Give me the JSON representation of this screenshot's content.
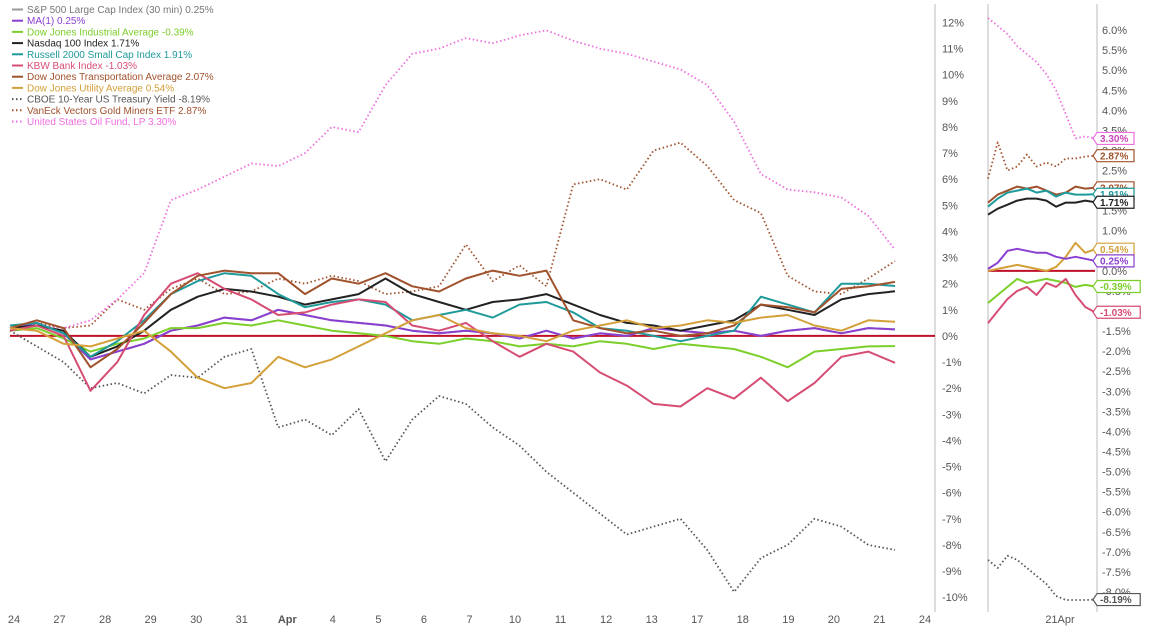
{
  "chart_data": [
    {
      "type": "line",
      "title": "",
      "xlabel": "",
      "ylabel": "",
      "x_ticks": [
        "24",
        "27",
        "28",
        "29",
        "30",
        "31",
        "Apr",
        "4",
        "5",
        "6",
        "7",
        "10",
        "11",
        "12",
        "13",
        "17",
        "18",
        "19",
        "20",
        "21",
        "24"
      ],
      "ylim": [
        -10.3,
        12.4
      ],
      "y_ticks": [
        "12%",
        "11%",
        "10%",
        "9%",
        "8%",
        "7%",
        "6%",
        "5%",
        "4%",
        "3%",
        "2%",
        "1%",
        "0%",
        "-1%",
        "-2%",
        "-3%",
        "-4%",
        "-5%",
        "-6%",
        "-7%",
        "-8%",
        "-9%",
        "-10%"
      ],
      "legend_position": "top-left",
      "zero_line_color": "#c0102a",
      "series": [
        {
          "name": "S&P 500 Large Cap Index (30 min) 0.25%",
          "color": "#999999",
          "style": "solid",
          "values": [
            0.3,
            0.5,
            0.1,
            -0.9,
            -0.6,
            -0.3,
            0.2,
            0.4,
            0.7,
            0.6,
            1.0,
            0.8,
            0.6,
            0.5,
            0.4,
            0.2,
            0.1,
            0.2,
            0.1,
            -0.1,
            0.2,
            -0.1,
            0.1,
            0.0,
            0.3,
            0.2,
            0.1,
            0.2,
            0.0,
            0.2,
            0.3,
            0.1,
            0.3,
            0.25
          ]
        },
        {
          "name": "MA(1) 0.25%",
          "color": "#8a3fd1",
          "style": "solid",
          "values": [
            0.3,
            0.5,
            0.1,
            -0.9,
            -0.6,
            -0.3,
            0.2,
            0.4,
            0.7,
            0.6,
            1.0,
            0.8,
            0.6,
            0.5,
            0.4,
            0.2,
            0.1,
            0.2,
            0.1,
            -0.1,
            0.2,
            -0.1,
            0.1,
            0.0,
            0.3,
            0.2,
            0.1,
            0.2,
            0.0,
            0.2,
            0.3,
            0.1,
            0.3,
            0.25
          ]
        },
        {
          "name": "Dow Jones Industrial Average -0.39%",
          "color": "#7ccf2a",
          "style": "solid",
          "values": [
            0.2,
            0.3,
            -0.1,
            -0.6,
            -0.3,
            -0.1,
            0.3,
            0.3,
            0.5,
            0.4,
            0.6,
            0.4,
            0.2,
            0.1,
            0.0,
            -0.2,
            -0.3,
            -0.1,
            -0.2,
            -0.4,
            -0.3,
            -0.4,
            -0.2,
            -0.3,
            -0.5,
            -0.3,
            -0.4,
            -0.5,
            -0.8,
            -1.2,
            -0.6,
            -0.5,
            -0.4,
            -0.39
          ]
        },
        {
          "name": "Nasdaq 100 Index 1.71%",
          "color": "#222222",
          "style": "solid",
          "values": [
            0.3,
            0.4,
            0.2,
            -0.8,
            -0.4,
            0.2,
            1.0,
            1.5,
            1.8,
            1.7,
            1.5,
            1.2,
            1.4,
            1.6,
            2.2,
            1.6,
            1.3,
            1.0,
            1.3,
            1.4,
            1.6,
            1.2,
            0.8,
            0.5,
            0.4,
            0.2,
            0.4,
            0.6,
            1.2,
            1.0,
            0.8,
            1.4,
            1.6,
            1.71
          ]
        },
        {
          "name": "Russell 2000 Small Cap Index 1.91%",
          "color": "#1f9a9a",
          "style": "solid",
          "values": [
            0.4,
            0.5,
            0.1,
            -0.8,
            -0.2,
            0.6,
            1.6,
            2.1,
            2.4,
            2.3,
            1.6,
            1.1,
            1.3,
            1.4,
            1.2,
            0.6,
            0.8,
            1.0,
            0.7,
            1.2,
            1.3,
            0.9,
            0.3,
            0.2,
            0.0,
            -0.2,
            0.0,
            0.2,
            1.5,
            1.2,
            0.9,
            2.0,
            2.0,
            1.91
          ]
        },
        {
          "name": "KBW Bank Index -1.03%",
          "color": "#d64d74",
          "style": "solid",
          "values": [
            0.2,
            0.4,
            0.0,
            -2.1,
            -1.0,
            0.8,
            2.0,
            2.4,
            1.8,
            1.4,
            0.8,
            0.9,
            1.2,
            1.4,
            1.3,
            0.4,
            0.2,
            0.5,
            -0.2,
            -0.8,
            -0.3,
            -0.6,
            -1.4,
            -1.9,
            -2.6,
            -2.7,
            -2.0,
            -2.4,
            -1.6,
            -2.5,
            -1.8,
            -0.8,
            -0.6,
            -1.03
          ]
        },
        {
          "name": "Dow Jones Transportation Average 2.07%",
          "color": "#a0522d",
          "style": "solid",
          "values": [
            0.3,
            0.6,
            0.3,
            -1.2,
            -0.5,
            0.5,
            1.6,
            2.3,
            2.5,
            2.4,
            2.4,
            1.6,
            2.2,
            2.0,
            2.4,
            1.9,
            1.7,
            2.2,
            2.5,
            2.3,
            2.5,
            0.6,
            0.3,
            0.1,
            0.2,
            0.0,
            0.1,
            0.4,
            1.2,
            1.1,
            0.9,
            1.8,
            1.9,
            2.07
          ]
        },
        {
          "name": "Dow Jones Utility Average 0.54%",
          "color": "#d4a03a",
          "style": "solid",
          "values": [
            0.3,
            0.2,
            -0.3,
            -0.4,
            -0.1,
            0.2,
            -0.6,
            -1.6,
            -2.0,
            -1.8,
            -0.8,
            -1.2,
            -0.9,
            -0.4,
            0.1,
            0.6,
            0.8,
            0.3,
            0.1,
            0.0,
            -0.2,
            0.2,
            0.4,
            0.6,
            0.3,
            0.4,
            0.6,
            0.5,
            0.7,
            0.8,
            0.4,
            0.2,
            0.6,
            0.54
          ]
        },
        {
          "name": "CBOE 10-Year US Treasury Yield -8.19%",
          "color": "#555555",
          "style": "dotted",
          "values": [
            0.2,
            -0.4,
            -1.0,
            -2.0,
            -1.8,
            -2.2,
            -1.5,
            -1.6,
            -0.8,
            -0.5,
            -3.5,
            -3.2,
            -3.8,
            -2.8,
            -4.8,
            -3.2,
            -2.3,
            -2.6,
            -3.5,
            -4.2,
            -5.2,
            -6.0,
            -6.8,
            -7.6,
            -7.3,
            -7.0,
            -8.2,
            -9.8,
            -8.5,
            -8.0,
            -7.0,
            -7.3,
            -8.0,
            -8.19
          ]
        },
        {
          "name": "VanEck Vectors Gold Miners ETF 2.87%",
          "color": "#a0522d",
          "style": "dotted",
          "values": [
            0.2,
            0.5,
            0.3,
            0.4,
            1.4,
            1.0,
            1.8,
            2.2,
            1.6,
            1.7,
            2.2,
            2.0,
            2.3,
            2.1,
            1.6,
            1.7,
            1.9,
            3.5,
            2.1,
            2.7,
            1.9,
            5.8,
            6.0,
            5.6,
            7.1,
            7.4,
            6.5,
            5.2,
            4.7,
            2.3,
            1.7,
            1.6,
            2.2,
            2.87
          ]
        },
        {
          "name": "United States Oil Fund, LP 3.30%",
          "color": "#ee6ee0",
          "style": "dotted",
          "values": [
            0.2,
            0.4,
            0.3,
            0.6,
            1.4,
            2.4,
            5.2,
            5.6,
            6.1,
            6.6,
            6.5,
            7.0,
            8.0,
            7.8,
            9.6,
            10.8,
            11.0,
            11.4,
            11.2,
            11.5,
            11.7,
            11.3,
            11.0,
            10.8,
            10.5,
            10.2,
            9.6,
            8.2,
            6.2,
            5.6,
            5.5,
            5.3,
            4.6,
            3.3
          ]
        }
      ]
    },
    {
      "type": "line",
      "title": "",
      "xlabel": "",
      "ylabel": "",
      "x_ticks": [
        "21Apr"
      ],
      "ylim": [
        -8.3,
        6.45
      ],
      "y_ticks": [
        "6.0%",
        "5.5%",
        "5.0%",
        "4.5%",
        "4.0%",
        "3.5%",
        "3.0%",
        "2.5%",
        "2.0%",
        "1.5%",
        "1.0%",
        "0.5%",
        "0.0%",
        "-0.5%",
        "-1.0%",
        "-1.5%",
        "-2.0%",
        "-2.5%",
        "-3.0%",
        "-3.5%",
        "-4.0%",
        "-4.5%",
        "-5.0%",
        "-5.5%",
        "-6.0%",
        "-6.5%",
        "-7.0%",
        "-7.5%",
        "-8.0%"
      ],
      "zero_line_color": "#c0102a",
      "series": [
        {
          "name": "United States Oil Fund, LP",
          "color": "#ee6ee0",
          "style": "dotted",
          "end_label": "3.30%",
          "values": [
            6.3,
            6.1,
            5.9,
            5.6,
            5.4,
            5.2,
            4.9,
            4.5,
            3.9,
            3.3,
            3.35,
            3.3
          ]
        },
        {
          "name": "VanEck Vectors Gold Miners ETF",
          "color": "#a0522d",
          "style": "dotted",
          "end_label": "2.87%",
          "values": [
            2.3,
            3.2,
            2.5,
            2.6,
            2.9,
            2.6,
            2.7,
            2.6,
            2.8,
            2.8,
            2.85,
            2.87
          ]
        },
        {
          "name": "Dow Jones Transportation Average",
          "color": "#a0522d",
          "style": "solid",
          "end_label": "2.07%",
          "values": [
            1.7,
            1.9,
            2.0,
            2.1,
            2.05,
            2.1,
            2.0,
            1.9,
            1.95,
            2.1,
            2.05,
            2.07
          ]
        },
        {
          "name": "Russell 2000 Small Cap Index",
          "color": "#1f9a9a",
          "style": "solid",
          "end_label": "1.91%",
          "values": [
            1.6,
            1.8,
            1.95,
            2.0,
            2.05,
            1.95,
            2.0,
            1.85,
            1.95,
            1.9,
            1.9,
            1.91
          ]
        },
        {
          "name": "Nasdaq 100 Index",
          "color": "#222222",
          "style": "solid",
          "end_label": "1.71%",
          "values": [
            1.4,
            1.55,
            1.65,
            1.75,
            1.8,
            1.8,
            1.75,
            1.6,
            1.7,
            1.7,
            1.75,
            1.71
          ]
        },
        {
          "name": "Dow Jones Utility Average",
          "color": "#d4a03a",
          "style": "solid",
          "end_label": "0.54%",
          "values": [
            0.0,
            0.05,
            0.1,
            0.15,
            0.1,
            0.05,
            0.0,
            0.1,
            0.35,
            0.7,
            0.45,
            0.54
          ]
        },
        {
          "name": "MA(1)",
          "color": "#8a3fd1",
          "style": "solid",
          "end_label": "0.25%",
          "values": [
            0.05,
            0.2,
            0.5,
            0.55,
            0.5,
            0.45,
            0.45,
            0.35,
            0.3,
            0.35,
            0.3,
            0.25
          ]
        },
        {
          "name": "Dow Jones Industrial Average",
          "color": "#7ccf2a",
          "style": "solid",
          "end_label": "-0.39%",
          "values": [
            -0.8,
            -0.6,
            -0.4,
            -0.2,
            -0.3,
            -0.25,
            -0.2,
            -0.25,
            -0.3,
            -0.4,
            -0.35,
            -0.39
          ]
        },
        {
          "name": "KBW Bank Index",
          "color": "#d64d74",
          "style": "solid",
          "end_label": "-1.03%",
          "values": [
            -1.3,
            -1.0,
            -0.7,
            -0.5,
            -0.4,
            -0.6,
            -0.3,
            -0.4,
            -0.2,
            -0.6,
            -0.9,
            -1.03
          ]
        },
        {
          "name": "CBOE 10-Year US Treasury Yield",
          "color": "#555555",
          "style": "dotted",
          "end_label": "-8.19%",
          "values": [
            -7.2,
            -7.4,
            -7.1,
            -7.2,
            -7.4,
            -7.6,
            -7.8,
            -8.1,
            -8.2,
            -8.2,
            -8.2,
            -8.19
          ]
        }
      ]
    }
  ]
}
